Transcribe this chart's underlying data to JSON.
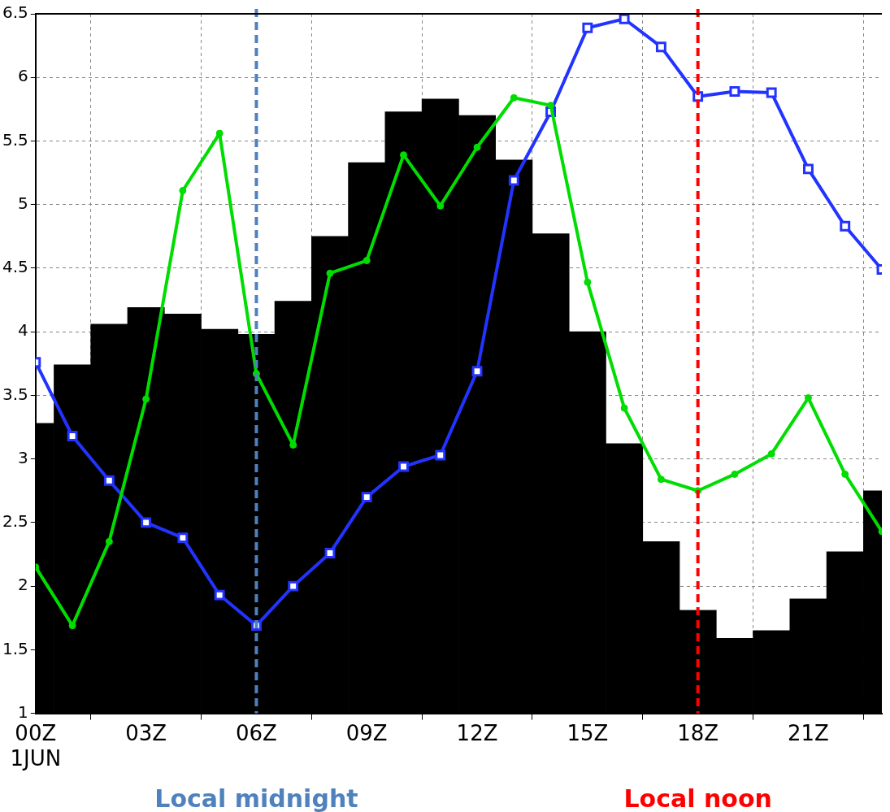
{
  "chart_data": {
    "type": "bar",
    "x": [
      0,
      1,
      2,
      3,
      4,
      5,
      6,
      7,
      8,
      9,
      10,
      11,
      12,
      13,
      14,
      15,
      16,
      17,
      18,
      19,
      20,
      21,
      22,
      23
    ],
    "xlim": [
      0,
      23
    ],
    "xticks": [
      {
        "value": 0,
        "label": "00Z\n1JUN"
      },
      {
        "value": 3,
        "label": "03Z"
      },
      {
        "value": 6,
        "label": "06Z"
      },
      {
        "value": 9,
        "label": "09Z"
      },
      {
        "value": 12,
        "label": "12Z"
      },
      {
        "value": 15,
        "label": "15Z"
      },
      {
        "value": 18,
        "label": "18Z"
      },
      {
        "value": 21,
        "label": "21Z"
      }
    ],
    "ylim": [
      1,
      6.5
    ],
    "yticks": [
      1,
      1.5,
      2,
      2.5,
      3,
      3.5,
      4,
      4.5,
      5,
      5.5,
      6,
      6.5
    ],
    "grid": true,
    "legend": false,
    "series": [
      {
        "color": "#000000",
        "values": [
          3.28,
          3.74,
          4.06,
          4.19,
          4.14,
          4.02,
          3.98,
          4.24,
          4.75,
          5.33,
          5.73,
          5.83,
          5.7,
          5.35,
          4.77,
          4.0,
          3.12,
          2.35,
          1.81,
          1.59,
          1.65,
          1.9,
          2.27,
          2.75
        ]
      },
      {
        "type": "line",
        "color": "#00dd00",
        "marker": "circle",
        "values": [
          2.15,
          1.69,
          2.35,
          3.47,
          5.11,
          5.56,
          3.67,
          3.11,
          4.46,
          4.56,
          5.39,
          4.99,
          5.45,
          5.84,
          5.78,
          4.39,
          3.4,
          2.84,
          2.75,
          2.88,
          3.04,
          3.48,
          2.88,
          2.43
        ]
      },
      {
        "type": "line",
        "color": "#2233ff",
        "marker": "square",
        "values": [
          3.76,
          3.18,
          2.83,
          2.5,
          2.38,
          1.93,
          1.69,
          2.0,
          2.26,
          2.7,
          2.94,
          3.03,
          3.69,
          5.19,
          5.73,
          6.39,
          6.46,
          6.24,
          5.85,
          5.89,
          5.88,
          5.28,
          4.83,
          4.49
        ]
      }
    ],
    "ref_lines": [
      {
        "axis": "x",
        "value": 6,
        "label": "Local midnight",
        "color": "#4f81bd",
        "line_style": "dashed"
      },
      {
        "axis": "x",
        "value": 18,
        "label": "Local noon",
        "color": "#ff0000",
        "line_style": "dashed"
      }
    ]
  }
}
